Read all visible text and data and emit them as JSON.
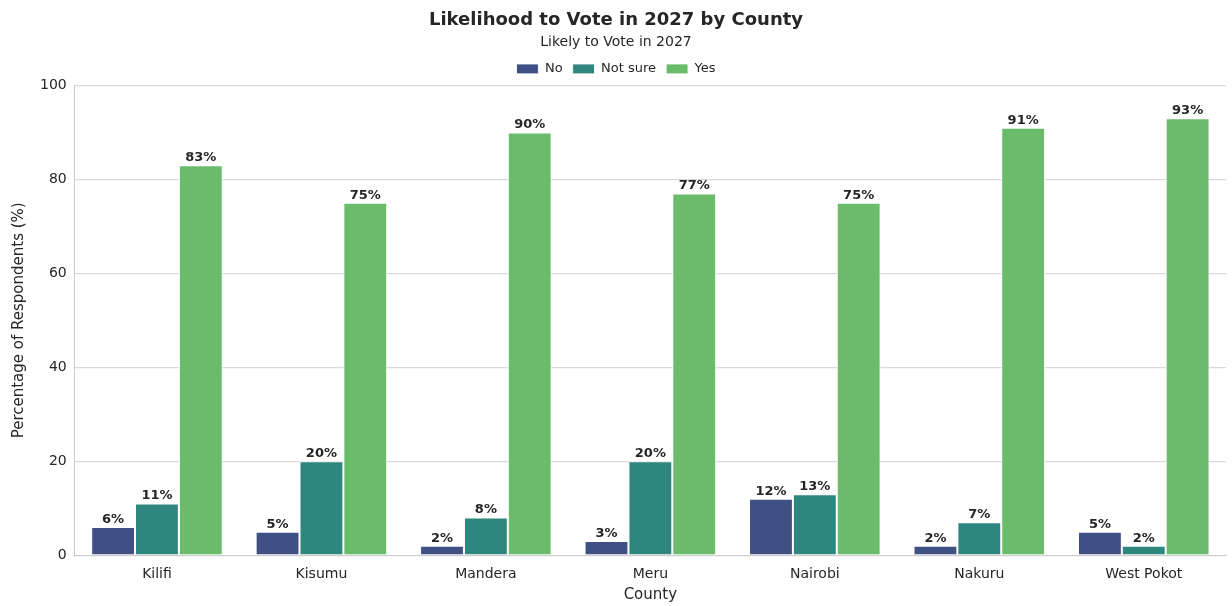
{
  "chart_data": {
    "type": "bar",
    "title": "Likelihood to Vote in 2027 by County",
    "xlabel": "County",
    "ylabel": "Percentage of Respondents (%)",
    "legend_title": "Likely to Vote in 2027",
    "categories": [
      "Kilifi",
      "Kisumu",
      "Mandera",
      "Meru",
      "Nairobi",
      "Nakuru",
      "West Pokot"
    ],
    "series": [
      {
        "name": "No",
        "color": "#415084",
        "values": [
          6,
          5,
          2,
          3,
          12,
          2,
          5
        ],
        "value_labels": [
          "6%",
          "5%",
          "2%",
          "3%",
          "12%",
          "2%",
          "5%"
        ]
      },
      {
        "name": "Not sure",
        "color": "#2e867e",
        "values": [
          11,
          20,
          8,
          20,
          13,
          7,
          2
        ],
        "value_labels": [
          "11%",
          "20%",
          "8%",
          "20%",
          "13%",
          "7%",
          "2%"
        ]
      },
      {
        "name": "Yes",
        "color": "#6abc6a",
        "values": [
          83,
          75,
          90,
          77,
          75,
          91,
          93
        ],
        "value_labels": [
          "83%",
          "75%",
          "90%",
          "77%",
          "75%",
          "91%",
          "93%"
        ]
      }
    ],
    "ylim": [
      0,
      100
    ],
    "yticks": [
      0,
      20,
      40,
      60,
      80,
      100
    ],
    "grid": "y",
    "legend": "top"
  }
}
